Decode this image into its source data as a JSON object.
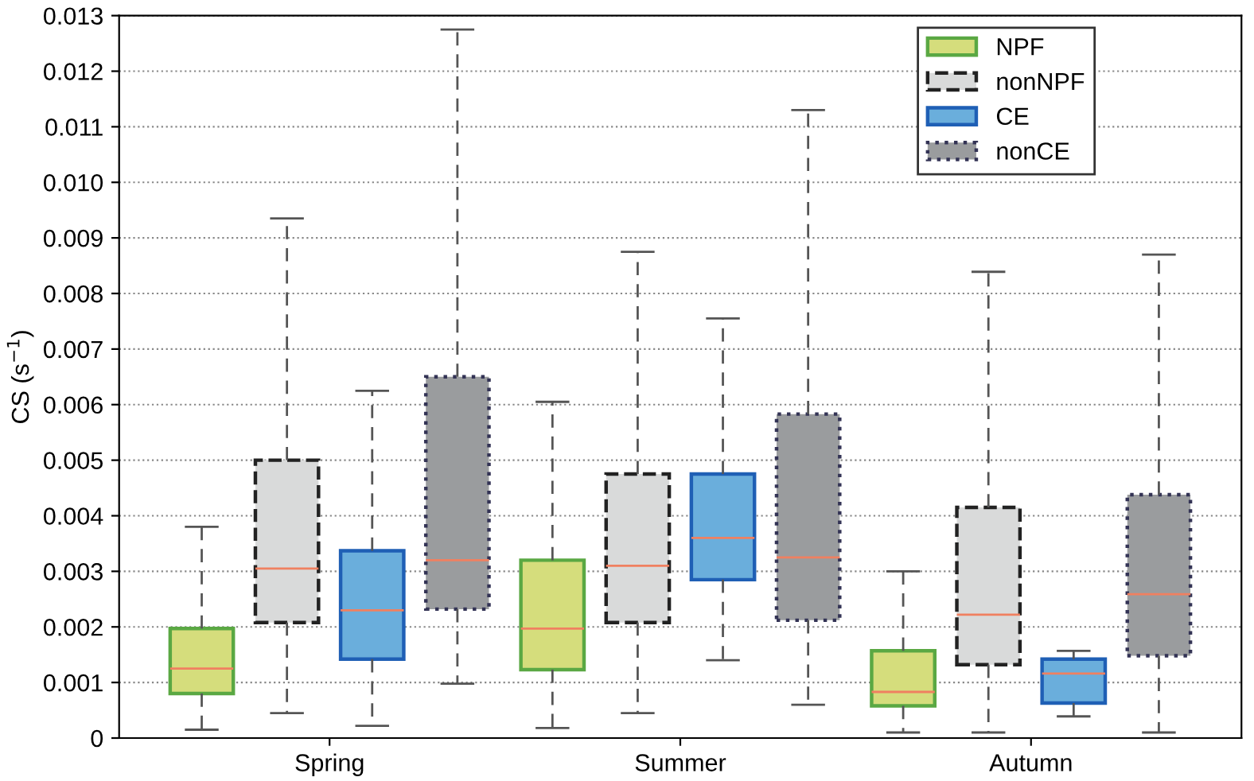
{
  "chart_data": {
    "type": "box",
    "ylabel": "CS (s$^{−1}$)",
    "categories": [
      "Spring",
      "Summer",
      "Autumn"
    ],
    "ylim": [
      0,
      0.013
    ],
    "yticks": [
      0,
      0.001,
      0.002,
      0.003,
      0.004,
      0.005,
      0.006,
      0.007,
      0.008,
      0.009,
      {
        "value": 0.01,
        "label": "0.010"
      },
      0.011,
      0.012,
      0.013
    ],
    "grid": "y",
    "legend": "top right",
    "series": [
      {
        "name": "NPF",
        "color": "#d5dd7c",
        "line_style": "solid",
        "boxes": [
          {
            "low": 0.00015,
            "q1": 0.0008,
            "median": 0.00125,
            "q3": 0.00197,
            "high": 0.0038
          },
          {
            "low": 0.00018,
            "q1": 0.00123,
            "median": 0.00197,
            "q3": 0.0032,
            "high": 0.00605
          },
          {
            "low": 0.0001,
            "q1": 0.00058,
            "median": 0.00083,
            "q3": 0.00157,
            "high": 0.003
          }
        ]
      },
      {
        "name": "nonNPF",
        "color": "#d9dada",
        "line_style": "dashed",
        "boxes": [
          {
            "low": 0.00045,
            "q1": 0.00208,
            "median": 0.00305,
            "q3": 0.005,
            "high": 0.00935
          },
          {
            "low": 0.00045,
            "q1": 0.00208,
            "median": 0.0031,
            "q3": 0.00475,
            "high": 0.00875
          },
          {
            "low": 0.0001,
            "q1": 0.00132,
            "median": 0.00222,
            "q3": 0.00415,
            "high": 0.00839
          }
        ]
      },
      {
        "name": "CE",
        "color": "#6aaedc",
        "line_style": "solid",
        "boxes": [
          {
            "low": 0.00022,
            "q1": 0.00142,
            "median": 0.0023,
            "q3": 0.00337,
            "high": 0.00625
          },
          {
            "low": 0.0014,
            "q1": 0.00285,
            "median": 0.0036,
            "q3": 0.00475,
            "high": 0.00755
          },
          {
            "low": 0.00039,
            "q1": 0.00063,
            "median": 0.00116,
            "q3": 0.00142,
            "high": 0.00157
          }
        ]
      },
      {
        "name": "nonCE",
        "color": "#9a9c9e",
        "line_style": "dotted",
        "boxes": [
          {
            "low": 0.00098,
            "q1": 0.00232,
            "median": 0.0032,
            "q3": 0.0065,
            "high": 0.01275
          },
          {
            "low": 0.0006,
            "q1": 0.00212,
            "median": 0.00325,
            "q3": 0.00583,
            "high": 0.0113
          },
          {
            "low": 0.0001,
            "q1": 0.00148,
            "median": 0.00259,
            "q3": 0.00438,
            "high": 0.0087
          }
        ]
      }
    ]
  }
}
